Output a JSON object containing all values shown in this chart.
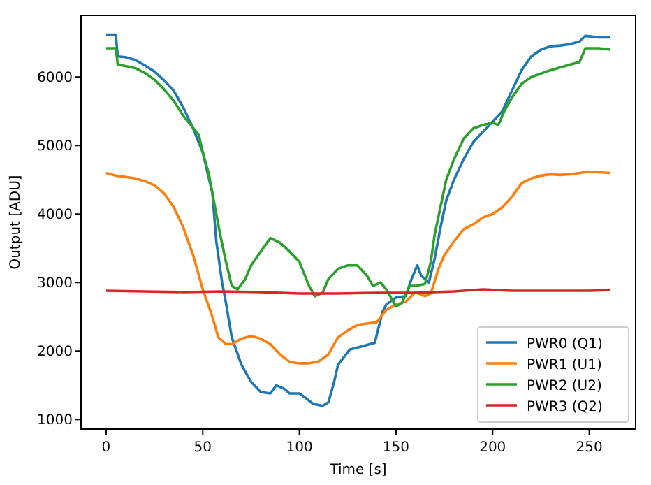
{
  "chart_data": {
    "type": "line",
    "xlabel": "Time [s]",
    "ylabel": "Output [ADU]",
    "xlim": [
      -13,
      274
    ],
    "ylim": [
      860,
      6900
    ],
    "xticks": [
      0,
      50,
      100,
      150,
      200,
      250
    ],
    "yticks": [
      1000,
      2000,
      3000,
      4000,
      5000,
      6000
    ],
    "grid": false,
    "legend": "bottom right",
    "series": [
      {
        "name": "PWR0 (Q1)",
        "color": "#1f77b4",
        "x": [
          0,
          5,
          6,
          10,
          15,
          20,
          25,
          30,
          35,
          40,
          45,
          50,
          55,
          57,
          60,
          62,
          65,
          70,
          75,
          80,
          85,
          88,
          92,
          95,
          100,
          103,
          107,
          112,
          115,
          118,
          120,
          126,
          139,
          143,
          145,
          150,
          155,
          158,
          161,
          163,
          167,
          170,
          173,
          176,
          180,
          185,
          190,
          195,
          200,
          205,
          210,
          215,
          220,
          225,
          230,
          235,
          240,
          245,
          248,
          255,
          261
        ],
        "values": [
          6620,
          6620,
          6300,
          6290,
          6250,
          6170,
          6080,
          5950,
          5800,
          5550,
          5250,
          4900,
          4300,
          3600,
          3000,
          2700,
          2200,
          1800,
          1550,
          1400,
          1380,
          1500,
          1450,
          1380,
          1380,
          1320,
          1230,
          1200,
          1250,
          1550,
          1800,
          2020,
          2120,
          2570,
          2680,
          2780,
          2800,
          3050,
          3250,
          3100,
          3000,
          3350,
          3800,
          4200,
          4500,
          4800,
          5050,
          5200,
          5350,
          5500,
          5800,
          6100,
          6300,
          6400,
          6450,
          6460,
          6480,
          6520,
          6600,
          6580,
          6580
        ]
      },
      {
        "name": "PWR1 (U1)",
        "color": "#ff7f0e",
        "x": [
          0,
          5,
          10,
          15,
          20,
          25,
          30,
          35,
          40,
          45,
          50,
          55,
          58,
          62,
          65,
          70,
          75,
          80,
          85,
          90,
          95,
          100,
          105,
          110,
          115,
          120,
          125,
          130,
          135,
          140,
          145,
          150,
          155,
          160,
          165,
          168,
          172,
          175,
          180,
          185,
          190,
          195,
          200,
          205,
          210,
          215,
          220,
          225,
          230,
          235,
          240,
          245,
          250,
          255,
          261
        ],
        "values": [
          4600,
          4560,
          4540,
          4520,
          4480,
          4420,
          4300,
          4100,
          3800,
          3400,
          2900,
          2500,
          2200,
          2100,
          2100,
          2180,
          2220,
          2180,
          2100,
          1950,
          1840,
          1820,
          1820,
          1850,
          1950,
          2200,
          2300,
          2380,
          2400,
          2420,
          2600,
          2680,
          2720,
          2860,
          2800,
          2840,
          3200,
          3400,
          3600,
          3780,
          3850,
          3950,
          4000,
          4100,
          4250,
          4450,
          4520,
          4560,
          4580,
          4570,
          4580,
          4600,
          4620,
          4610,
          4600
        ]
      },
      {
        "name": "PWR2 (U2)",
        "color": "#2ca02c",
        "x": [
          0,
          5,
          6,
          10,
          15,
          20,
          25,
          30,
          35,
          40,
          45,
          48,
          50,
          53,
          55,
          57,
          59,
          62,
          65,
          68,
          72,
          75,
          80,
          85,
          90,
          95,
          100,
          105,
          108,
          112,
          115,
          120,
          125,
          130,
          135,
          138,
          142,
          145,
          150,
          153,
          157,
          160,
          165,
          168,
          170,
          173,
          176,
          180,
          185,
          190,
          195,
          200,
          203,
          206,
          210,
          215,
          220,
          230,
          240,
          245,
          248,
          255,
          261
        ],
        "values": [
          6420,
          6420,
          6180,
          6160,
          6130,
          6060,
          5960,
          5820,
          5650,
          5430,
          5260,
          5150,
          4900,
          4600,
          4300,
          4000,
          3700,
          3300,
          2950,
          2900,
          3050,
          3250,
          3450,
          3650,
          3580,
          3450,
          3300,
          2950,
          2800,
          2850,
          3050,
          3200,
          3250,
          3250,
          3100,
          2950,
          3000,
          2900,
          2650,
          2700,
          2950,
          2950,
          2980,
          3300,
          3700,
          4100,
          4500,
          4800,
          5100,
          5250,
          5300,
          5330,
          5300,
          5500,
          5700,
          5900,
          6000,
          6100,
          6180,
          6220,
          6420,
          6420,
          6400
        ]
      },
      {
        "name": "PWR3 (Q2)",
        "color": "#d62728",
        "x": [
          0,
          20,
          40,
          60,
          80,
          100,
          120,
          140,
          160,
          180,
          195,
          210,
          230,
          250,
          261
        ],
        "values": [
          2880,
          2870,
          2860,
          2870,
          2860,
          2840,
          2840,
          2850,
          2850,
          2870,
          2900,
          2880,
          2880,
          2880,
          2890
        ]
      }
    ]
  }
}
